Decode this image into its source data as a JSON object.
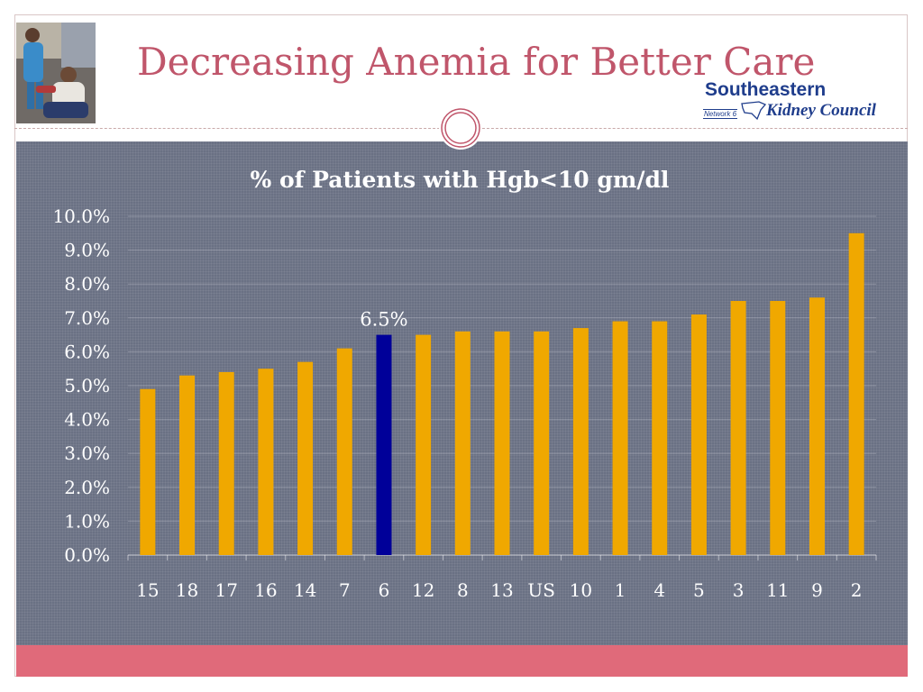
{
  "slide": {
    "title": "Decreasing Anemia for Better Care",
    "logo": {
      "line1": "Southeastern",
      "network": "Network 6",
      "line2": "Kidney Council"
    },
    "colors": {
      "title": "#c0566b",
      "panel": "#6a7184",
      "bottom_bar": "#e06a7a",
      "logo": "#1f3d8c"
    }
  },
  "chart_data": {
    "type": "bar",
    "title": "% of Patients with Hgb<10 gm/dl",
    "categories": [
      "15",
      "18",
      "17",
      "16",
      "14",
      "7",
      "6",
      "12",
      "8",
      "13",
      "US",
      "10",
      "1",
      "4",
      "5",
      "3",
      "11",
      "9",
      "2"
    ],
    "values": [
      4.9,
      5.3,
      5.4,
      5.5,
      5.7,
      6.1,
      6.5,
      6.5,
      6.6,
      6.6,
      6.6,
      6.7,
      6.9,
      6.9,
      7.1,
      7.5,
      7.5,
      7.6,
      9.5
    ],
    "ylim": [
      0,
      10
    ],
    "yticks": [
      "0.0%",
      "1.0%",
      "2.0%",
      "3.0%",
      "4.0%",
      "5.0%",
      "6.0%",
      "7.0%",
      "8.0%",
      "9.0%",
      "10.0%"
    ],
    "highlight_category": "6",
    "data_label": "6.5%",
    "bar_color": "#f0a800",
    "highlight_color": "#000099",
    "grid": true
  }
}
